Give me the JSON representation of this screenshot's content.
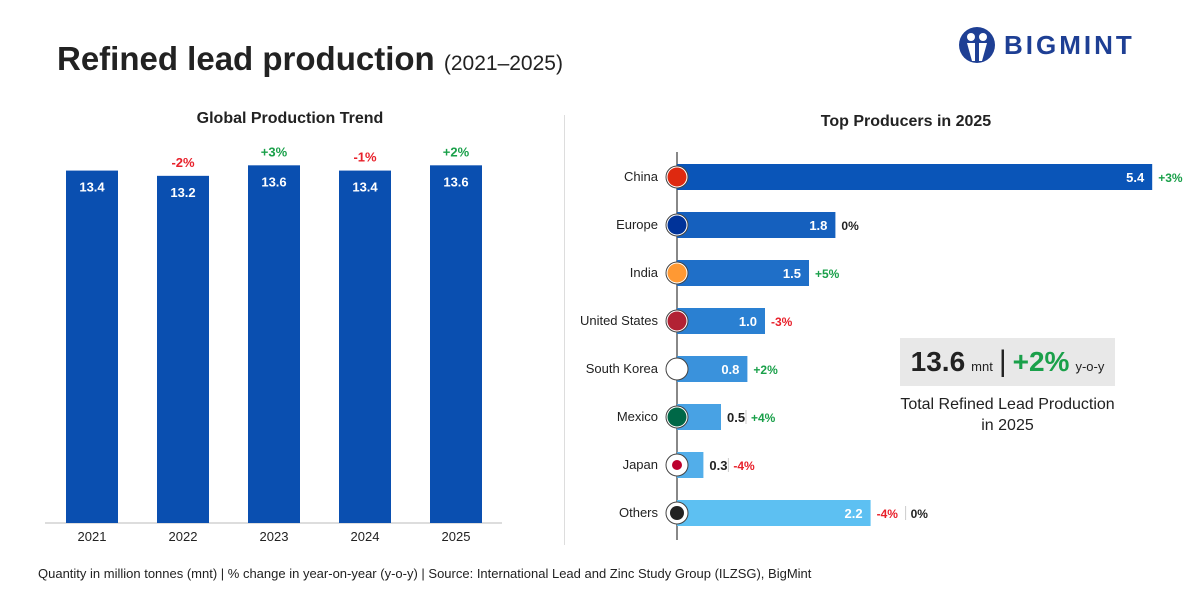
{
  "title": "Refined lead production",
  "title_range": "(2021–2025)",
  "logo": "BIGMINT",
  "footer": "Quantity in million tonnes (mnt) | % change in year-on-year (y-o-y) | Source: International Lead and Zinc Study Group (ILZSG), BigMint",
  "kpi": {
    "value": "13.6",
    "unit": "mnt",
    "separator": "|",
    "change": "+2%",
    "change_unit": "y-o-y",
    "caption_line1": "Total Refined Lead Production",
    "caption_line2": "in 2025"
  },
  "colors": {
    "bar": "#0a4fb0",
    "positive": "#1aa04a",
    "negative": "#e8202a",
    "neutral": "#222222"
  },
  "chart_data": [
    {
      "type": "bar",
      "title": "Global Production Trend",
      "categories": [
        "2021",
        "2022",
        "2023",
        "2024",
        "2025"
      ],
      "values": [
        13.4,
        13.2,
        13.6,
        13.4,
        13.6
      ],
      "labels": [
        "13.4",
        "13.2",
        "13.6",
        "13.4",
        "13.6"
      ],
      "changes": [
        "",
        "-2%",
        "+3%",
        "-1%",
        "+2%"
      ]
    },
    {
      "type": "bar",
      "orientation": "horizontal",
      "title": "Top Producers in 2025",
      "categories": [
        "China",
        "Europe",
        "India",
        "United States",
        "South Korea",
        "Mexico",
        "Japan",
        "Others"
      ],
      "values": [
        5.4,
        1.8,
        1.5,
        1.0,
        0.8,
        0.5,
        0.3,
        2.2
      ],
      "labels": [
        "5.4",
        "1.8",
        "1.5",
        "1.0",
        "0.8",
        "0.5",
        "0.3",
        "2.2"
      ],
      "changes": [
        "+3%",
        "0%",
        "+5%",
        "-3%",
        "+2%",
        "+4%",
        "-4%",
        "-4%"
      ],
      "extra_changes": [
        "",
        "",
        "",
        "",
        "",
        "",
        "",
        "0%"
      ],
      "flag_icons": [
        "china-flag-icon",
        "eu-flag-icon",
        "india-flag-icon",
        "us-flag-icon",
        "south-korea-flag-icon",
        "mexico-flag-icon",
        "japan-flag-icon",
        "globe-icon"
      ],
      "bar_colors": [
        "#0a55b8",
        "#1560be",
        "#1f6fc8",
        "#2a80d2",
        "#3a92dc",
        "#48a2e4",
        "#52aeea",
        "#5dc0f2"
      ]
    }
  ]
}
